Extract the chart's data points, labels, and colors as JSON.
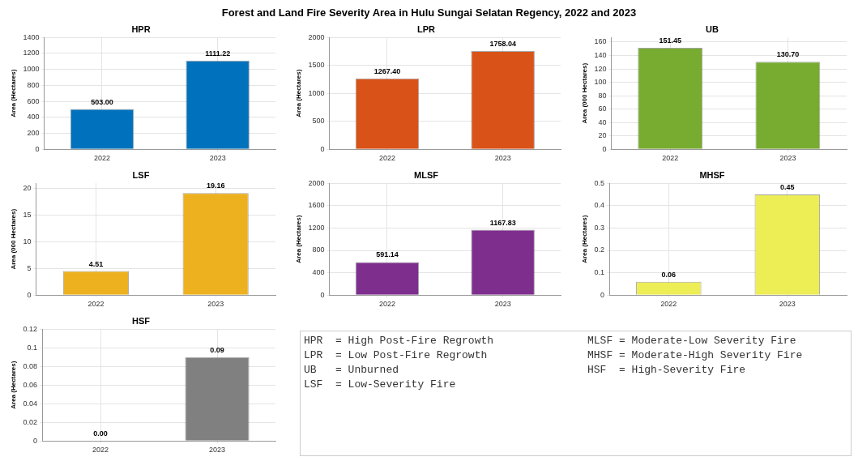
{
  "chart_data": [
    {
      "type": "other",
      "title": "Forest and Land Fire Severity Area in Hulu Sungai Selatan Regency, 2022 and 2023"
    },
    {
      "type": "bar",
      "title": "HPR",
      "ylabel": "Area (Hectares)",
      "categories": [
        "2022",
        "2023"
      ],
      "values": [
        503,
        1111.22
      ],
      "value_labels": [
        "503.00",
        "1111.22"
      ],
      "color": "#0072bd",
      "ylim": [
        0,
        1400
      ],
      "yticks": [
        0,
        200,
        400,
        600,
        800,
        1000,
        1200,
        1400
      ],
      "grid": true
    },
    {
      "type": "bar",
      "title": "LPR",
      "ylabel": "Area (Hectares)",
      "categories": [
        "2022",
        "2023"
      ],
      "values": [
        1267.4,
        1758.04
      ],
      "value_labels": [
        "1267.40",
        "1758.04"
      ],
      "color": "#d95319",
      "ylim": [
        0,
        2000
      ],
      "yticks": [
        0,
        500,
        1000,
        1500,
        2000
      ],
      "grid": true
    },
    {
      "type": "bar",
      "title": "UB",
      "ylabel": "Area (000 Hectares)",
      "categories": [
        "2022",
        "2023"
      ],
      "values": [
        151.45,
        130.7
      ],
      "value_labels": [
        "151.45",
        "130.70"
      ],
      "color": "#77ac30",
      "ylim": [
        0,
        167
      ],
      "yticks": [
        0,
        20,
        40,
        60,
        80,
        100,
        120,
        140,
        160
      ],
      "grid": true
    },
    {
      "type": "bar",
      "title": "LSF",
      "ylabel": "Area (000 Hectares)",
      "categories": [
        "2022",
        "2023"
      ],
      "values": [
        4.51,
        19.16
      ],
      "value_labels": [
        "4.51",
        "19.16"
      ],
      "color": "#edb120",
      "ylim": [
        0,
        21
      ],
      "yticks": [
        0,
        5,
        10,
        15,
        20
      ],
      "grid": true
    },
    {
      "type": "bar",
      "title": "MLSF",
      "ylabel": "Area (Hectares)",
      "categories": [
        "2022",
        "2023"
      ],
      "values": [
        591.14,
        1167.83
      ],
      "value_labels": [
        "591.14",
        "1167.83"
      ],
      "color": "#7e2f8e",
      "ylim": [
        0,
        2000
      ],
      "yticks": [
        0,
        400,
        800,
        1200,
        1600,
        2000
      ],
      "grid": true
    },
    {
      "type": "bar",
      "title": "MHSF",
      "ylabel": "Area (Hectares)",
      "categories": [
        "2022",
        "2023"
      ],
      "values": [
        0.06,
        0.45
      ],
      "value_labels": [
        "0.06",
        "0.45"
      ],
      "color": "#eded56",
      "ylim": [
        0,
        0.5
      ],
      "yticks": [
        0,
        0.1,
        0.2,
        0.3,
        0.4,
        0.5
      ],
      "grid": true
    },
    {
      "type": "bar",
      "title": "HSF",
      "ylabel": "Area (Hectares)",
      "categories": [
        "2022",
        "2023"
      ],
      "values": [
        0,
        0.09
      ],
      "value_labels": [
        "0.00",
        "0.09"
      ],
      "color": "#808080",
      "ylim": [
        0,
        0.12
      ],
      "yticks": [
        0,
        0.02,
        0.04,
        0.06,
        0.08,
        0.1,
        0.12
      ],
      "grid": true
    },
    {
      "type": "other",
      "annotations": [
        "HPR  = High Post-Fire Regrowth",
        "LPR  = Low Post-Fire Regrowth",
        "UB   = Unburned",
        "LSF  = Low-Severity Fire",
        "MLSF = Moderate-Low Severity Fire",
        "MHSF = Moderate-High Severity Fire",
        "HSF  = High-Severity Fire"
      ]
    }
  ]
}
